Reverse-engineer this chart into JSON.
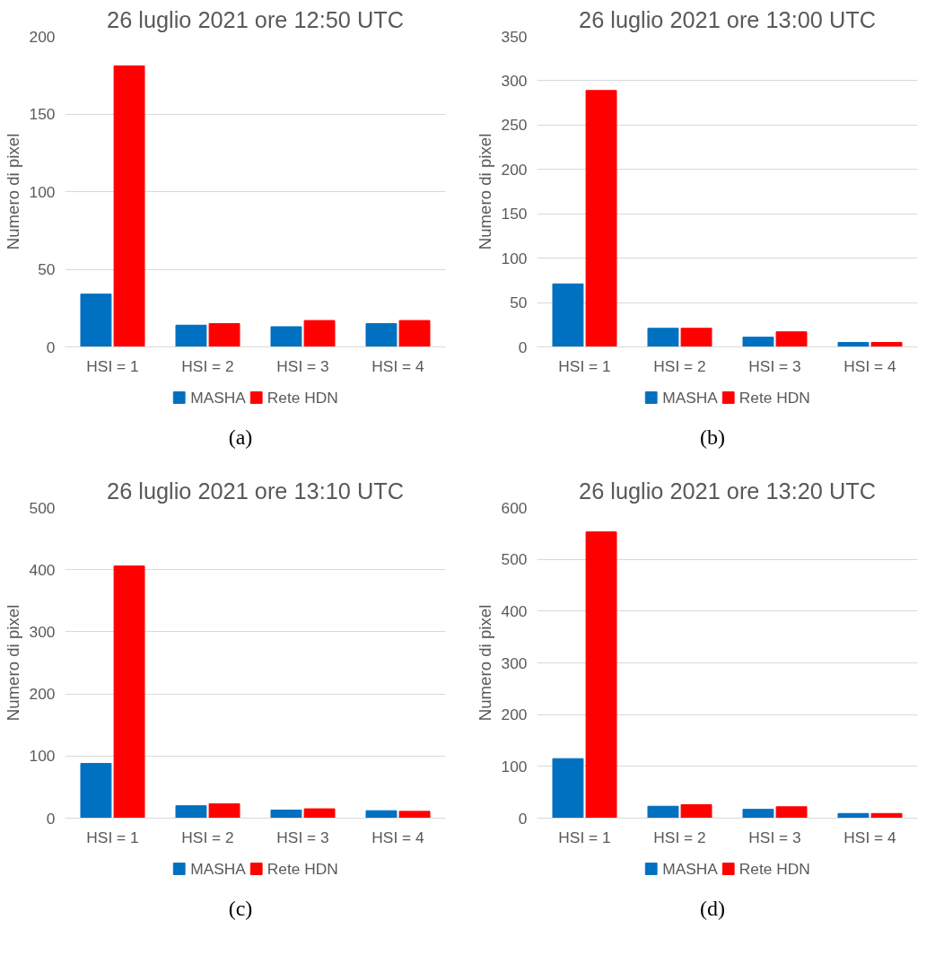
{
  "chart_data": [
    {
      "type": "bar",
      "title": "26 luglio 2021 ore 12:50 UTC",
      "ylabel": "Numero di pixel",
      "categories": [
        "HSI = 1",
        "HSI = 2",
        "HSI = 3",
        "HSI = 4"
      ],
      "series": [
        {
          "name": "MASHA",
          "color": "#0070c0",
          "values": [
            34,
            14,
            13,
            15
          ]
        },
        {
          "name": "Rete HDN",
          "color": "#ff0000",
          "values": [
            181,
            15,
            17,
            17
          ]
        }
      ],
      "ylim": [
        0,
        200
      ],
      "yticks": [
        0,
        50,
        100,
        150,
        200
      ],
      "grid": "y",
      "legend": "bottom",
      "annotations": [
        "(a)"
      ]
    },
    {
      "type": "bar",
      "title": "26 luglio 2021 ore 13:00 UTC",
      "ylabel": "Numero di pixel",
      "categories": [
        "HSI = 1",
        "HSI = 2",
        "HSI = 3",
        "HSI = 4"
      ],
      "series": [
        {
          "name": "MASHA",
          "color": "#0070c0",
          "values": [
            71,
            21,
            11,
            5
          ]
        },
        {
          "name": "Rete HDN",
          "color": "#ff0000",
          "values": [
            289,
            21,
            17,
            5
          ]
        }
      ],
      "ylim": [
        0,
        350
      ],
      "yticks": [
        0,
        50,
        100,
        150,
        200,
        250,
        300,
        350
      ],
      "grid": "y",
      "legend": "bottom",
      "annotations": [
        "(b)"
      ]
    },
    {
      "type": "bar",
      "title": "26 luglio 2021 ore 13:10 UTC",
      "ylabel": "Numero di pixel",
      "categories": [
        "HSI = 1",
        "HSI = 2",
        "HSI = 3",
        "HSI = 4"
      ],
      "series": [
        {
          "name": "MASHA",
          "color": "#0070c0",
          "values": [
            88,
            20,
            13,
            12
          ]
        },
        {
          "name": "Rete HDN",
          "color": "#ff0000",
          "values": [
            406,
            23,
            15,
            11
          ]
        }
      ],
      "ylim": [
        0,
        500
      ],
      "yticks": [
        0,
        100,
        200,
        300,
        400,
        500
      ],
      "grid": "y",
      "legend": "bottom",
      "annotations": [
        "(c)"
      ]
    },
    {
      "type": "bar",
      "title": "26 luglio 2021 ore 13:20 UTC",
      "ylabel": "Numero di pixel",
      "categories": [
        "HSI = 1",
        "HSI = 2",
        "HSI = 3",
        "HSI = 4"
      ],
      "series": [
        {
          "name": "MASHA",
          "color": "#0070c0",
          "values": [
            115,
            23,
            17,
            9
          ]
        },
        {
          "name": "Rete HDN",
          "color": "#ff0000",
          "values": [
            553,
            26,
            22,
            9
          ]
        }
      ],
      "ylim": [
        0,
        600
      ],
      "yticks": [
        0,
        100,
        200,
        300,
        400,
        500,
        600
      ],
      "grid": "y",
      "legend": "bottom",
      "annotations": [
        "(d)"
      ]
    }
  ]
}
